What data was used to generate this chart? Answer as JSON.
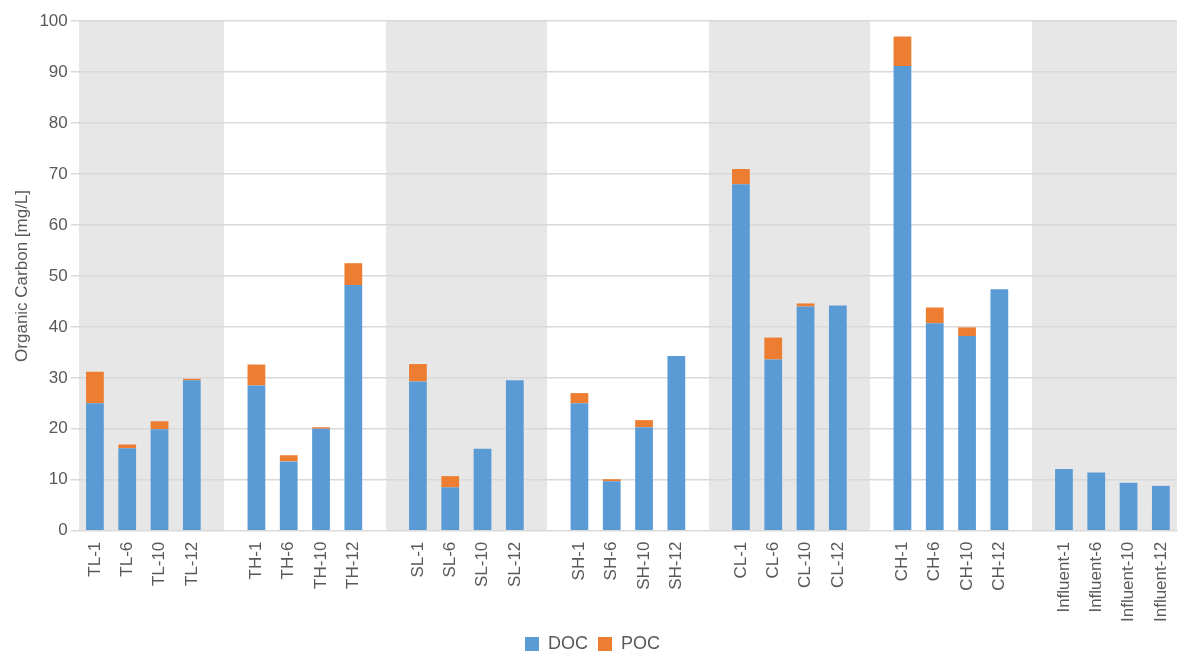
{
  "chart_data": {
    "type": "bar",
    "stacked": true,
    "ylabel": "Organic Carbon [mg/L]",
    "categories": [
      "TL-1",
      "TL-6",
      "TL-10",
      "TL-12",
      null,
      "TH-1",
      "TH-6",
      "TH-10",
      "TH-12",
      null,
      "SL-1",
      "SL-6",
      "SL-10",
      "SL-12",
      null,
      "SH-1",
      "SH-6",
      "SH-10",
      "SH-12",
      null,
      "CL-1",
      "CL-6",
      "CL-10",
      "CL-12",
      null,
      "CH-1",
      "CH-6",
      "CH-10",
      "CH-12",
      null,
      "Influent-1",
      "Influent-6",
      "Influent-10",
      "Influent-12"
    ],
    "series": [
      {
        "name": "DOC",
        "color": "#5b9bd5",
        "values": [
          25,
          16.2,
          19.9,
          29.5,
          null,
          28.5,
          13.6,
          20,
          48.2,
          null,
          29.3,
          8.5,
          16.1,
          29.5,
          null,
          25,
          9.7,
          20.3,
          34.3,
          null,
          68,
          33.6,
          44,
          44.2,
          null,
          91.2,
          40.7,
          38.2,
          47.4,
          null,
          12.1,
          11.4,
          9.4,
          8.8
        ]
      },
      {
        "name": "POC",
        "color": "#ed7d31",
        "values": [
          6.2,
          0.7,
          1.6,
          0.3,
          null,
          4.1,
          1.2,
          0.3,
          4.3,
          null,
          3.4,
          2.2,
          0,
          0,
          null,
          2,
          0.4,
          1.4,
          0,
          null,
          3,
          4.3,
          0.6,
          0,
          null,
          5.8,
          3.1,
          1.7,
          0,
          null,
          0,
          0,
          0,
          0
        ]
      }
    ],
    "ylim": [
      0,
      100
    ],
    "yticks": [
      0,
      10,
      20,
      30,
      40,
      50,
      60,
      70,
      80,
      90,
      100
    ],
    "grid": "y",
    "legend": "bottom"
  }
}
